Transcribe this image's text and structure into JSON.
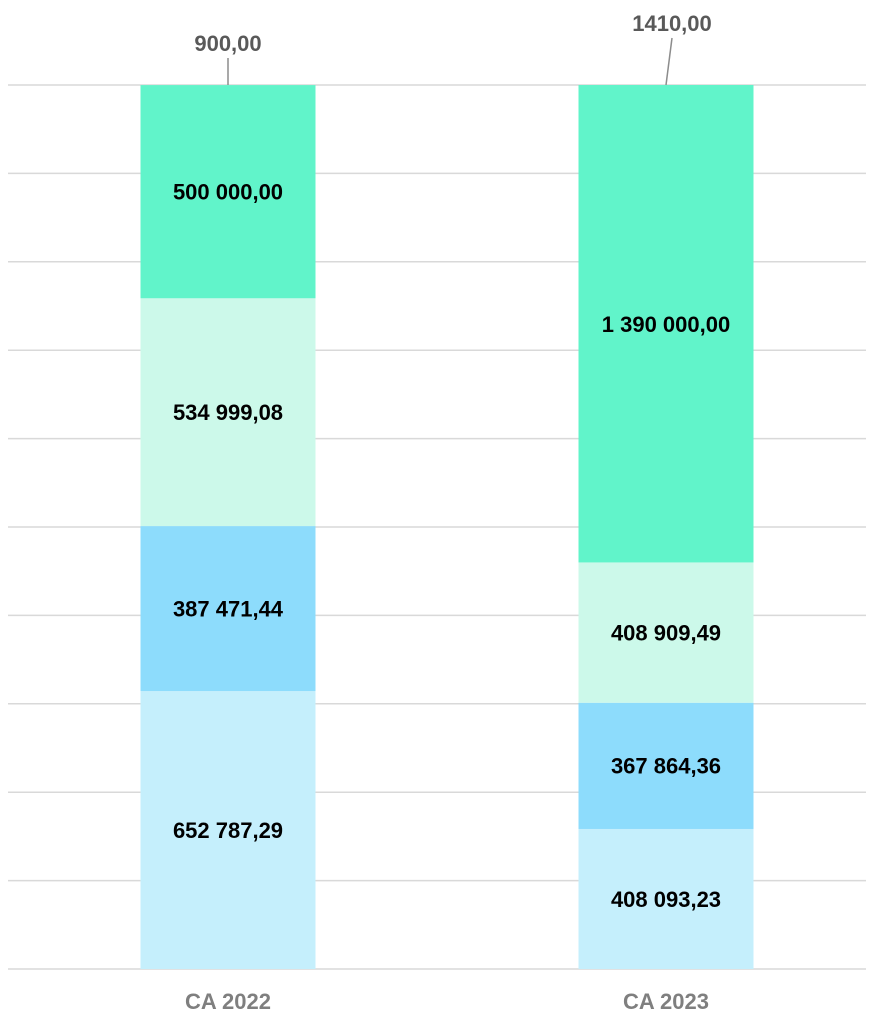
{
  "chart_data": {
    "type": "bar",
    "stacking": "percent",
    "categories": [
      "CA 2022",
      "CA 2023"
    ],
    "series": [
      {
        "color": "#c5effc",
        "values": [
          652787.29,
          408093.23
        ],
        "value_labels": [
          "652 787,29",
          "408 093,23"
        ]
      },
      {
        "color": "#8ddcfc",
        "values": [
          387471.44,
          367864.36
        ],
        "value_labels": [
          "387 471,44",
          "367 864,36"
        ]
      },
      {
        "color": "#ccf9ea",
        "values": [
          534999.08,
          408909.49
        ],
        "value_labels": [
          "534 999,08",
          "408 909,49"
        ]
      },
      {
        "color": "#61f4ca",
        "values": [
          500000,
          1390000
        ],
        "value_labels": [
          "500 000,00",
          "1 390 000,00"
        ]
      },
      {
        "color": "#61f4ca",
        "values": [
          900,
          1410
        ],
        "value_labels": [
          "900,00",
          "1410,00"
        ],
        "callout": true
      }
    ],
    "ylim": [
      0,
      100
    ],
    "yticks": [
      0,
      10,
      20,
      30,
      40,
      50,
      60,
      70,
      80,
      90,
      100
    ],
    "tick_labels": false,
    "grid": true
  }
}
